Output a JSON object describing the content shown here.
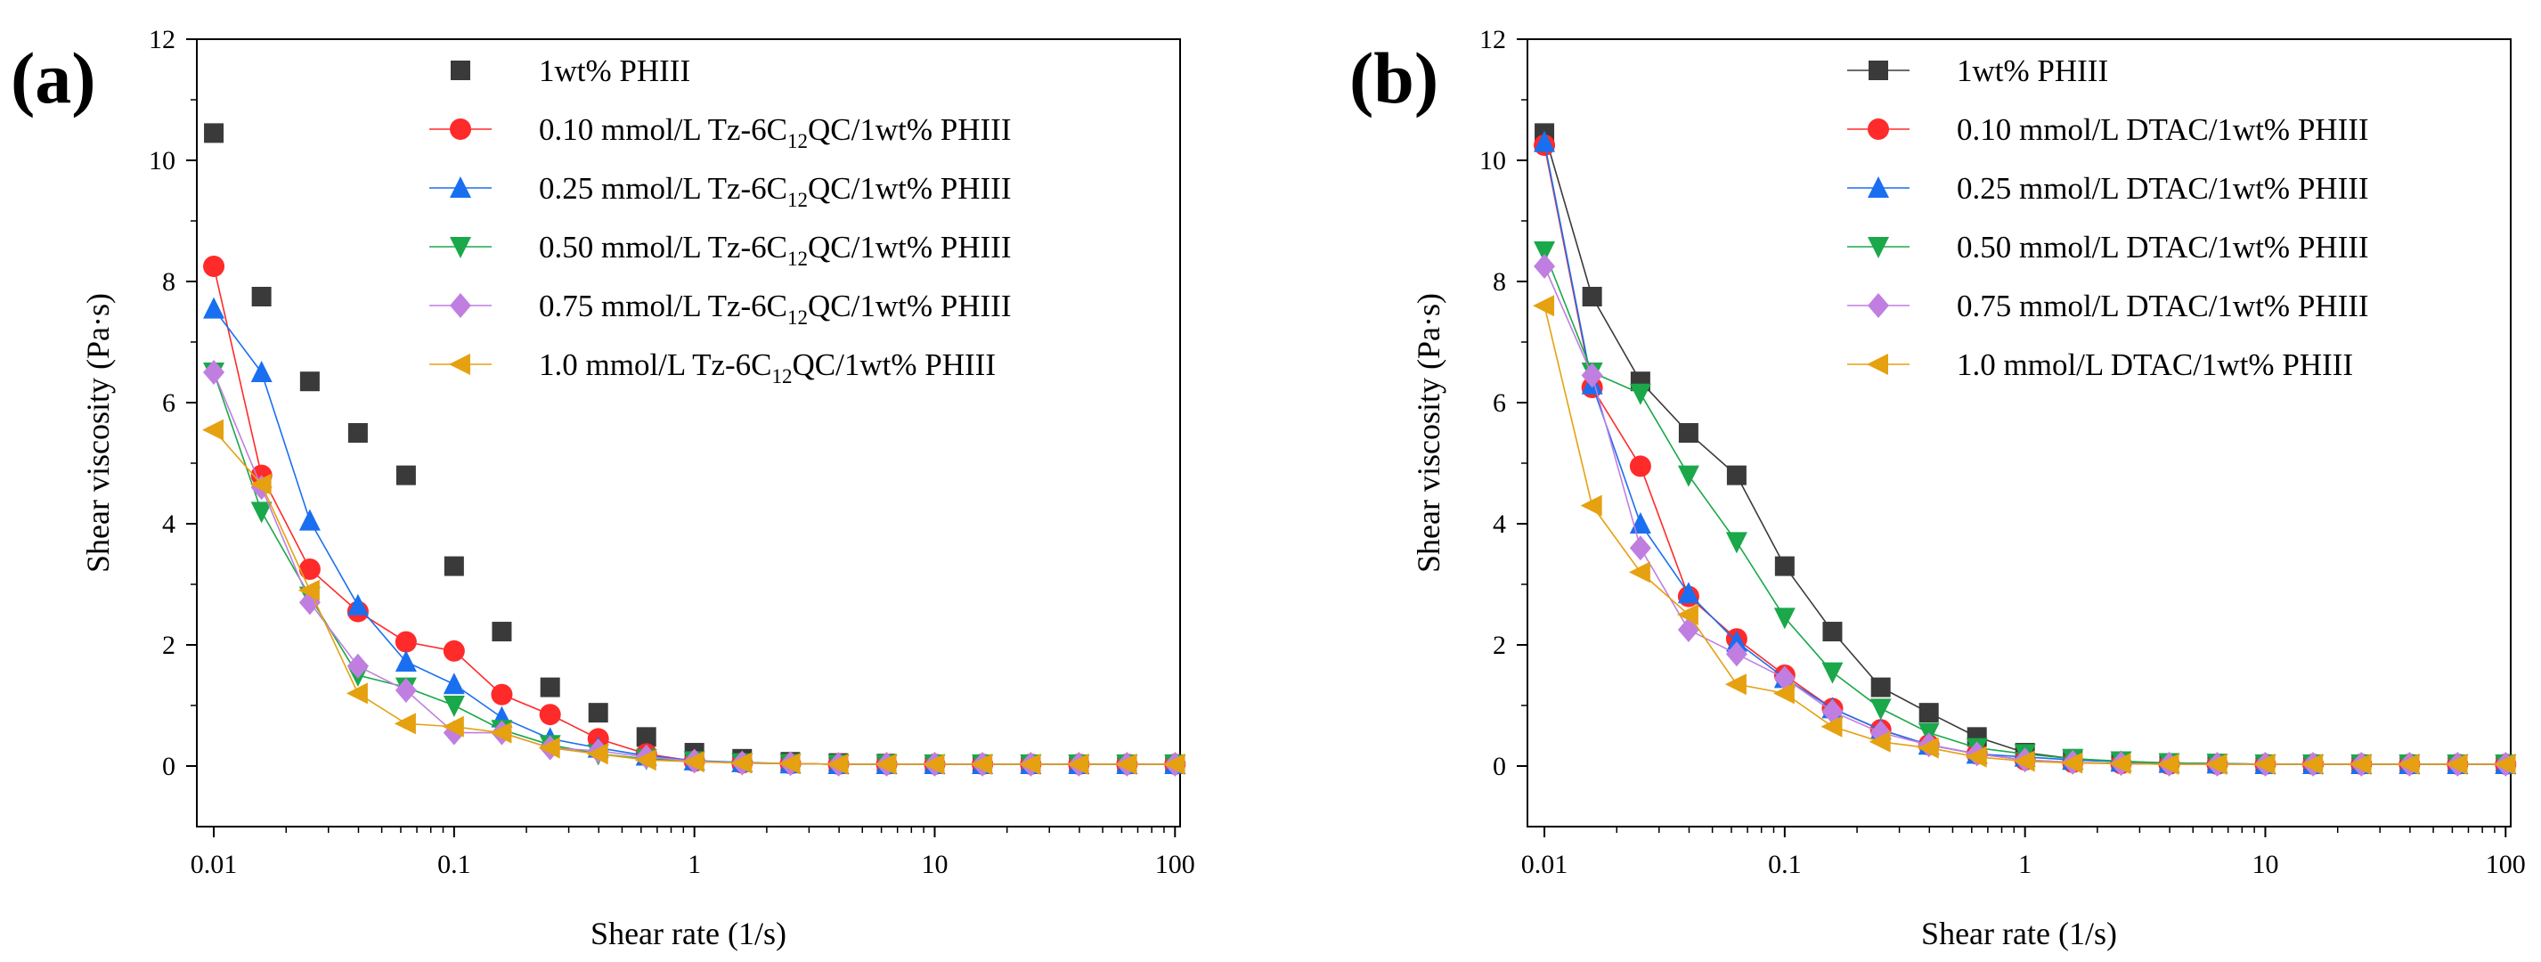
{
  "figure": {
    "panels": [
      "(a)",
      "(b)"
    ]
  },
  "chart_data": [
    {
      "panel": "(a)",
      "type": "line",
      "xscale": "log",
      "xlabel": "Shear rate (1/s)",
      "ylabel": "Shear viscosity (Pa·s)",
      "xlim": [
        0.0085,
        105
      ],
      "ylim": [
        -1,
        12
      ],
      "xticks": [
        0.01,
        0.1,
        1,
        10,
        100
      ],
      "xtick_labels": [
        "0.01",
        "0.1",
        "1",
        "10",
        "100"
      ],
      "yticks": [
        0,
        2,
        4,
        6,
        8,
        10,
        12
      ],
      "ytick_labels": [
        "0",
        "2",
        "4",
        "6",
        "8",
        "10",
        "12"
      ],
      "legend_position": "top-right",
      "x": [
        0.01,
        0.0158,
        0.0251,
        0.0398,
        0.0631,
        0.1,
        0.158,
        0.251,
        0.398,
        0.631,
        1,
        1.58,
        2.51,
        3.98,
        6.31,
        10,
        15.8,
        25.1,
        39.8,
        63.1,
        100
      ],
      "series": [
        {
          "name": "1wt% PHIII",
          "label_main": "1wt% PHIII",
          "label_sub": "",
          "label_tail": "",
          "color": "#3a3a3a",
          "marker": "square",
          "line": false,
          "values": [
            10.45,
            7.75,
            6.35,
            5.5,
            4.8,
            3.3,
            2.22,
            1.3,
            0.88,
            0.48,
            0.22,
            0.12,
            0.07,
            0.05,
            0.04,
            0.03,
            0.03,
            0.03,
            0.03,
            0.03,
            0.03
          ]
        },
        {
          "name": "0.10 mmol/L Tz-6C12QC/1wt% PHIII",
          "label_main": "0.10 mmol/L Tz-6C",
          "label_sub": "12",
          "label_tail": "QC/1wt% PHIII",
          "color": "#ff2a2a",
          "marker": "circle",
          "line": true,
          "values": [
            8.25,
            4.8,
            3.25,
            2.55,
            2.05,
            1.9,
            1.18,
            0.85,
            0.45,
            0.2,
            0.08,
            0.05,
            0.04,
            0.03,
            0.03,
            0.03,
            0.03,
            0.03,
            0.03,
            0.03,
            0.03
          ]
        },
        {
          "name": "0.25 mmol/L Tz-6C12QC/1wt% PHIII",
          "label_main": "0.25 mmol/L Tz-6C",
          "label_sub": "12",
          "label_tail": "QC/1wt% PHIII",
          "color": "#1a6ff0",
          "marker": "triangle-up",
          "line": true,
          "values": [
            7.55,
            6.5,
            4.05,
            2.65,
            1.72,
            1.35,
            0.8,
            0.45,
            0.3,
            0.17,
            0.09,
            0.06,
            0.04,
            0.03,
            0.03,
            0.03,
            0.03,
            0.03,
            0.03,
            0.03,
            0.03
          ]
        },
        {
          "name": "0.50 mmol/L Tz-6C12QC/1wt% PHIII",
          "label_main": "0.50 mmol/L Tz-6C",
          "label_sub": "12",
          "label_tail": "QC/1wt% PHIII",
          "color": "#1aa84a",
          "marker": "triangle-down",
          "line": true,
          "values": [
            6.5,
            4.2,
            2.8,
            1.5,
            1.3,
            1.0,
            0.6,
            0.35,
            0.2,
            0.12,
            0.08,
            0.05,
            0.04,
            0.03,
            0.03,
            0.03,
            0.03,
            0.03,
            0.03,
            0.03,
            0.03
          ]
        },
        {
          "name": "0.75 mmol/L Tz-6C12QC/1wt% PHIII",
          "label_main": "0.75 mmol/L Tz-6C",
          "label_sub": "12",
          "label_tail": "QC/1wt% PHIII",
          "color": "#c07fe0",
          "marker": "diamond",
          "line": true,
          "values": [
            6.5,
            4.6,
            2.7,
            1.65,
            1.25,
            0.55,
            0.55,
            0.3,
            0.25,
            0.15,
            0.08,
            0.05,
            0.04,
            0.03,
            0.03,
            0.03,
            0.03,
            0.03,
            0.03,
            0.03,
            0.03
          ]
        },
        {
          "name": "1.0 mmol/L Tz-6C12QC/1wt% PHIII",
          "label_main": "1.0   mmol/L Tz-6C",
          "label_sub": "12",
          "label_tail": "QC/1wt% PHIII",
          "color": "#e5a110",
          "marker": "triangle-left",
          "line": true,
          "values": [
            5.55,
            4.65,
            2.9,
            1.2,
            0.7,
            0.65,
            0.55,
            0.3,
            0.2,
            0.1,
            0.07,
            0.05,
            0.04,
            0.03,
            0.03,
            0.03,
            0.03,
            0.03,
            0.03,
            0.03,
            0.03
          ]
        }
      ]
    },
    {
      "panel": "(b)",
      "type": "line",
      "xscale": "log",
      "xlabel": "Shear rate (1/s)",
      "ylabel": "Shear viscosity (Pa·s)",
      "xlim": [
        0.0085,
        105
      ],
      "ylim": [
        -1,
        12
      ],
      "xticks": [
        0.01,
        0.1,
        1,
        10,
        100
      ],
      "xtick_labels": [
        "0.01",
        "0.1",
        "1",
        "10",
        "100"
      ],
      "yticks": [
        0,
        2,
        4,
        6,
        8,
        10,
        12
      ],
      "ytick_labels": [
        "0",
        "2",
        "4",
        "6",
        "8",
        "10",
        "12"
      ],
      "legend_position": "top-right",
      "x": [
        0.01,
        0.0158,
        0.0251,
        0.0398,
        0.0631,
        0.1,
        0.158,
        0.251,
        0.398,
        0.631,
        1,
        1.58,
        2.51,
        3.98,
        6.31,
        10,
        15.8,
        25.1,
        39.8,
        63.1,
        100
      ],
      "series": [
        {
          "name": "1wt% PHIII",
          "label_main": "1wt% PHIII",
          "label_sub": "",
          "label_tail": "",
          "color": "#3a3a3a",
          "marker": "square",
          "line": true,
          "values": [
            10.45,
            7.75,
            6.35,
            5.5,
            4.8,
            3.3,
            2.22,
            1.3,
            0.88,
            0.48,
            0.22,
            0.12,
            0.07,
            0.05,
            0.04,
            0.03,
            0.03,
            0.03,
            0.03,
            0.03,
            0.03
          ]
        },
        {
          "name": "0.10 mmol/L DTAC/1wt% PHIII",
          "label_main": "0.10 mmol/L DTAC/1wt% PHIII",
          "label_sub": "",
          "label_tail": "",
          "color": "#ff2a2a",
          "marker": "circle",
          "line": true,
          "values": [
            10.25,
            6.25,
            4.95,
            2.8,
            2.1,
            1.5,
            0.95,
            0.6,
            0.35,
            0.2,
            0.1,
            0.06,
            0.04,
            0.03,
            0.03,
            0.03,
            0.03,
            0.03,
            0.03,
            0.03,
            0.03
          ]
        },
        {
          "name": "0.25 mmol/L DTAC/1wt% PHIII",
          "label_main": "0.25 mmol/L DTAC/1wt% PHIII",
          "label_sub": "",
          "label_tail": "",
          "color": "#1a6ff0",
          "marker": "triangle-up",
          "line": true,
          "values": [
            10.3,
            6.3,
            4.0,
            2.85,
            2.05,
            1.45,
            0.95,
            0.6,
            0.35,
            0.2,
            0.15,
            0.1,
            0.07,
            0.05,
            0.04,
            0.03,
            0.03,
            0.03,
            0.03,
            0.03,
            0.03
          ]
        },
        {
          "name": "0.50 mmol/L DTAC/1wt% PHIII",
          "label_main": "0.50 mmol/L DTAC/1wt% PHIII",
          "label_sub": "",
          "label_tail": "",
          "color": "#1aa84a",
          "marker": "triangle-down",
          "line": true,
          "values": [
            8.5,
            6.5,
            6.15,
            4.8,
            3.7,
            2.45,
            1.55,
            0.95,
            0.55,
            0.3,
            0.2,
            0.12,
            0.08,
            0.05,
            0.04,
            0.03,
            0.03,
            0.03,
            0.03,
            0.03,
            0.03
          ]
        },
        {
          "name": "0.75 mmol/L DTAC/1wt% PHIII",
          "label_main": "0.75 mmol/L DTAC/1wt% PHIII",
          "label_sub": "",
          "label_tail": "",
          "color": "#c07fe0",
          "marker": "diamond",
          "line": true,
          "values": [
            8.25,
            6.45,
            3.6,
            2.25,
            1.85,
            1.45,
            0.9,
            0.55,
            0.35,
            0.2,
            0.1,
            0.06,
            0.04,
            0.03,
            0.03,
            0.03,
            0.03,
            0.03,
            0.03,
            0.03,
            0.03
          ]
        },
        {
          "name": "1.0 mmol/L DTAC/1wt% PHIII",
          "label_main": "1.0   mmol/L DTAC/1wt% PHIII",
          "label_sub": "",
          "label_tail": "",
          "color": "#e5a110",
          "marker": "triangle-left",
          "line": true,
          "values": [
            7.6,
            4.3,
            3.2,
            2.5,
            1.35,
            1.2,
            0.65,
            0.4,
            0.3,
            0.15,
            0.08,
            0.05,
            0.04,
            0.03,
            0.03,
            0.03,
            0.03,
            0.03,
            0.03,
            0.03,
            0.03
          ]
        }
      ]
    }
  ]
}
